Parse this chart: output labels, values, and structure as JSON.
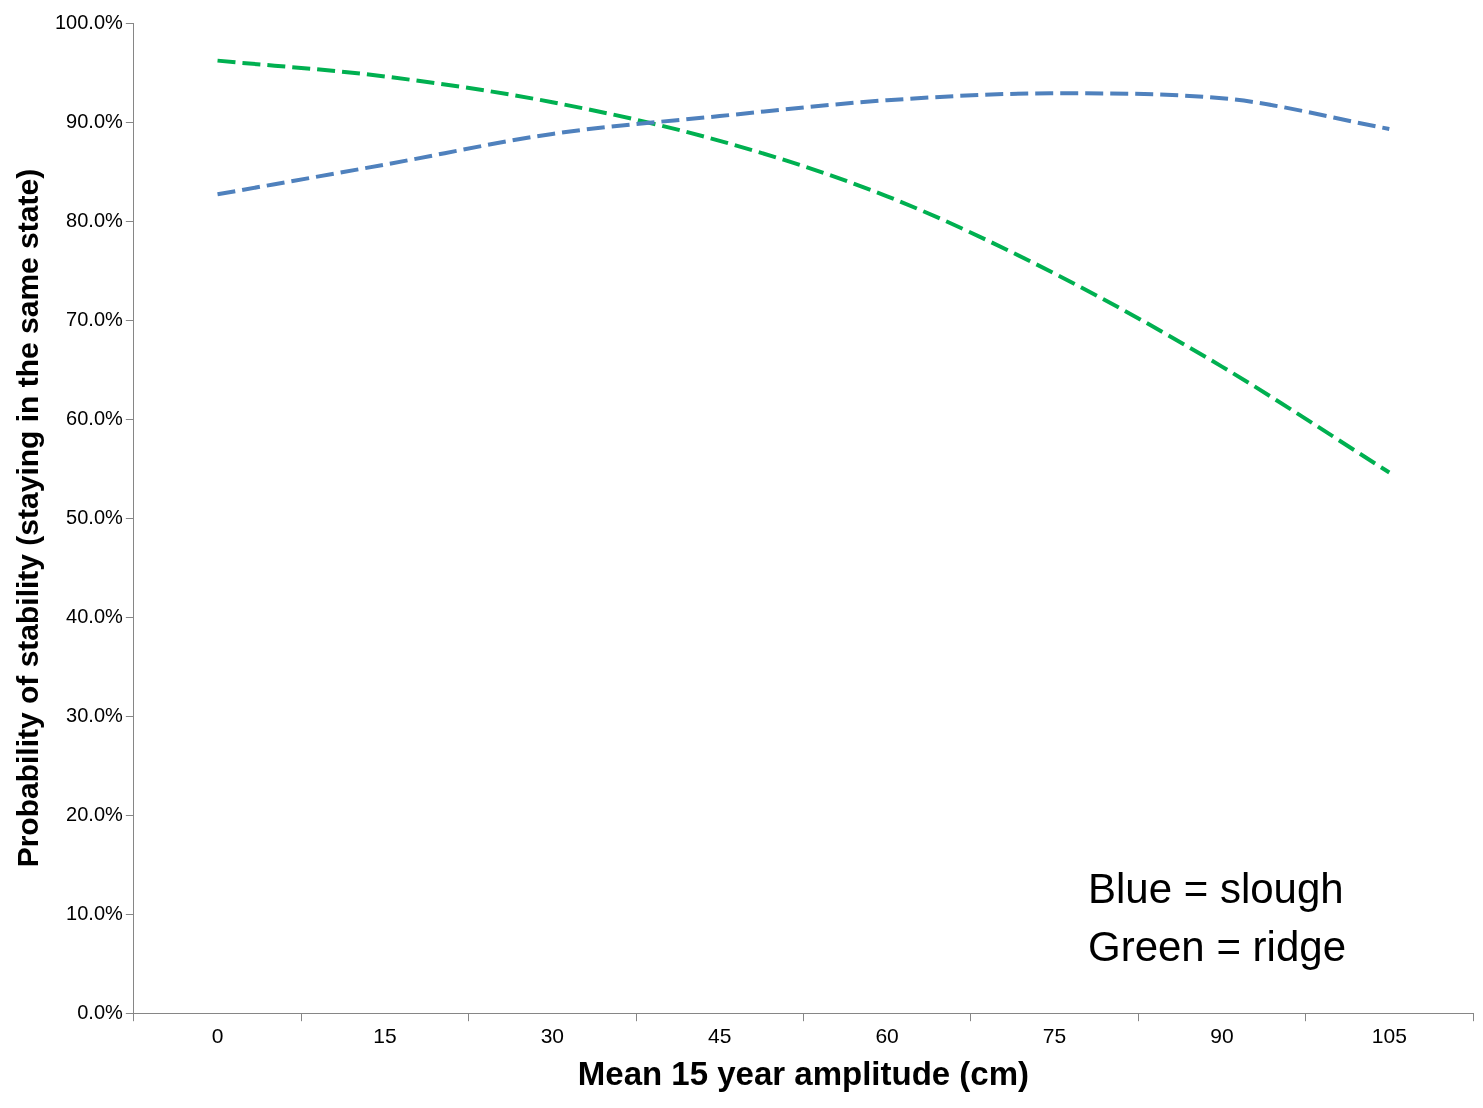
{
  "chart_data": {
    "type": "line",
    "xlabel": "Mean 15 year amplitude (cm)",
    "ylabel": "Probability of stability (staying in the same state)",
    "categories": [
      "0",
      "15",
      "30",
      "45",
      "60",
      "75",
      "90",
      "105"
    ],
    "series": [
      {
        "color": "#4f81bd",
        "values": [
          82.7,
          85.7,
          88.8,
          90.6,
          92.2,
          92.9,
          92.4,
          89.3
        ]
      },
      {
        "color": "#00b050",
        "values": [
          96.2,
          94.6,
          92.0,
          88.1,
          82.5,
          74.7,
          65.3,
          54.6
        ]
      }
    ],
    "ylim": [
      0,
      100
    ],
    "yticks": [
      {
        "value": 0,
        "label": "0.0%"
      },
      {
        "value": 10,
        "label": "10.0%"
      },
      {
        "value": 20,
        "label": "20.0%"
      },
      {
        "value": 30,
        "label": "30.0%"
      },
      {
        "value": 40,
        "label": "40.0%"
      },
      {
        "value": 50,
        "label": "50.0%"
      },
      {
        "value": 60,
        "label": "60.0%"
      },
      {
        "value": 70,
        "label": "70.0%"
      },
      {
        "value": 80,
        "label": "80.0%"
      },
      {
        "value": 90,
        "label": "90.0%"
      },
      {
        "value": 100,
        "label": "100.0%"
      }
    ],
    "annotations": [
      "Blue = slough",
      "Green = ridge"
    ],
    "grid": false,
    "legend": false,
    "marker": "none",
    "line_style": "dashed"
  }
}
